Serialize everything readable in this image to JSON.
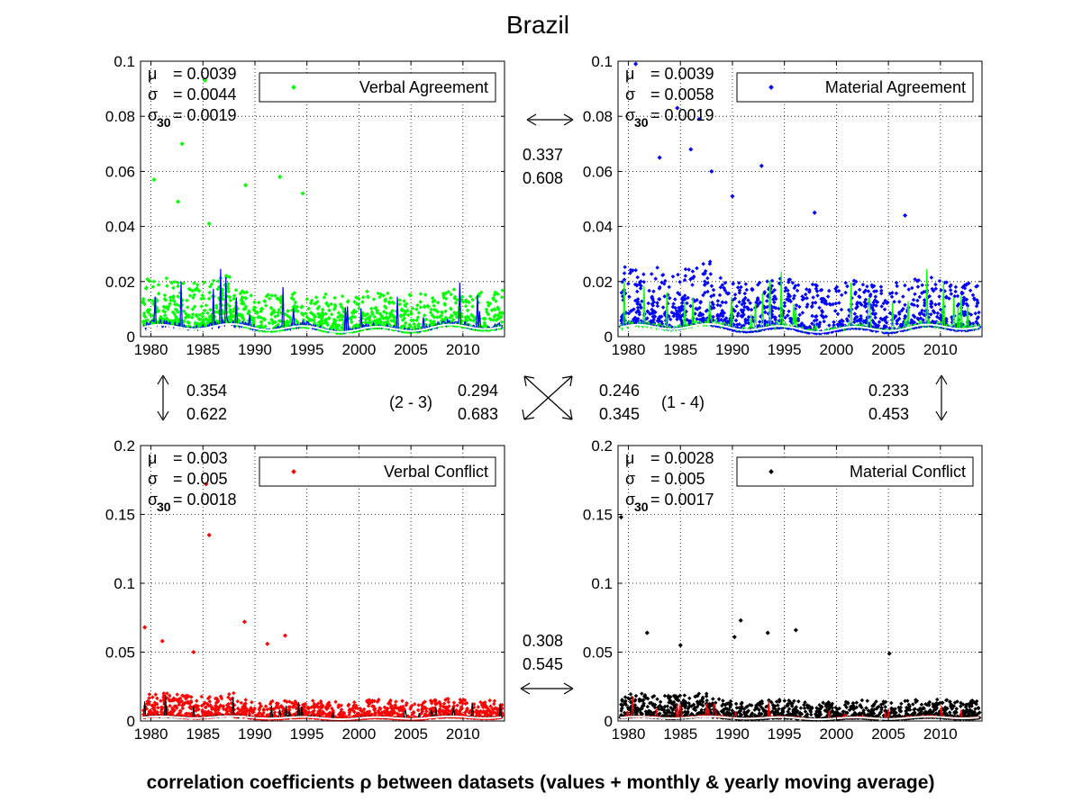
{
  "figure": {
    "title": "Brazil",
    "caption": "correlation coefficients ρ between datasets (values + monthly & yearly moving average)"
  },
  "chart_data": [
    {
      "type": "scatter",
      "panel": "top-left",
      "series": [
        {
          "name": "Verbal Agreement",
          "color": "#00ff00"
        }
      ],
      "xlim": [
        1979,
        2014
      ],
      "ylim": [
        0,
        0.1
      ],
      "xticks": [
        "1980",
        "1985",
        "1990",
        "1995",
        "2000",
        "2005",
        "2010"
      ],
      "yticks": [
        "0",
        "0.02",
        "0.04",
        "0.06",
        "0.08",
        "0.1"
      ],
      "stats": {
        "mu": "0.0039",
        "sigma": "0.0044",
        "sigma30": "0.0019"
      },
      "base": 0.0039,
      "noise": 0.0044,
      "sampleSpread": 0.35,
      "outliers": [
        [
          1980.3,
          0.057
        ],
        [
          1983.0,
          0.07
        ],
        [
          1985.2,
          0.093
        ],
        [
          1989.1,
          0.055
        ],
        [
          1992.4,
          0.058
        ],
        [
          1994.6,
          0.052
        ],
        [
          1982.6,
          0.049
        ],
        [
          1985.6,
          0.041
        ]
      ],
      "maColor": "#ffffff",
      "monthlyColor": "#0000ff",
      "grid": true,
      "legend_position": "top-right"
    },
    {
      "type": "scatter",
      "panel": "top-right",
      "series": [
        {
          "name": "Material Agreement",
          "color": "#0000ff"
        }
      ],
      "xlim": [
        1979,
        2014
      ],
      "ylim": [
        0,
        0.1
      ],
      "xticks": [
        "1980",
        "1985",
        "1990",
        "1995",
        "2000",
        "2005",
        "2010"
      ],
      "yticks": [
        "0",
        "0.02",
        "0.04",
        "0.06",
        "0.08",
        "0.1"
      ],
      "stats": {
        "mu": "0.0039",
        "sigma": "0.0058",
        "sigma30": "0.0019"
      },
      "base": 0.0039,
      "noise": 0.0058,
      "sampleSpread": 0.35,
      "outliers": [
        [
          1980.7,
          0.099
        ],
        [
          1984.7,
          0.083
        ],
        [
          1986.0,
          0.068
        ],
        [
          1983.0,
          0.065
        ],
        [
          1986.8,
          0.079
        ],
        [
          1992.8,
          0.062
        ],
        [
          1988.0,
          0.06
        ],
        [
          1997.9,
          0.045
        ],
        [
          2006.6,
          0.044
        ],
        [
          1990.0,
          0.051
        ]
      ],
      "maColor": "#ffffff",
      "monthlyColor": "#00ff00",
      "grid": true,
      "legend_position": "top-right"
    },
    {
      "type": "scatter",
      "panel": "bottom-left",
      "series": [
        {
          "name": "Verbal Conflict",
          "color": "#ff0000"
        }
      ],
      "xlim": [
        1979,
        2014
      ],
      "ylim": [
        0,
        0.2
      ],
      "xticks": [
        "1980",
        "1985",
        "1990",
        "1995",
        "2000",
        "2005",
        "2010"
      ],
      "yticks": [
        "0",
        "0.05",
        "0.1",
        "0.15",
        "0.2"
      ],
      "stats": {
        "mu": "0.003",
        "sigma": "0.005",
        "sigma30": "0.0018"
      },
      "base": 0.003,
      "noise": 0.005,
      "sampleSpread": 0.3,
      "outliers": [
        [
          1985.6,
          0.135
        ],
        [
          1985.3,
          0.172
        ],
        [
          1989.0,
          0.072
        ],
        [
          1979.4,
          0.068
        ],
        [
          1991.2,
          0.056
        ],
        [
          1992.9,
          0.062
        ],
        [
          1981.1,
          0.058
        ],
        [
          1984.1,
          0.05
        ]
      ],
      "maColor": "#ffffff",
      "monthlyColor": "#000000",
      "grid": true,
      "legend_position": "top-right"
    },
    {
      "type": "scatter",
      "panel": "bottom-right",
      "series": [
        {
          "name": "Material Conflict",
          "color": "#000000"
        }
      ],
      "xlim": [
        1979,
        2014
      ],
      "ylim": [
        0,
        0.2
      ],
      "xticks": [
        "1980",
        "1985",
        "1990",
        "1995",
        "2000",
        "2005",
        "2010"
      ],
      "yticks": [
        "0",
        "0.05",
        "0.1",
        "0.15",
        "0.2"
      ],
      "stats": {
        "mu": "0.0028",
        "sigma": "0.005",
        "sigma30": "0.0017"
      },
      "base": 0.0028,
      "noise": 0.005,
      "sampleSpread": 0.3,
      "outliers": [
        [
          1979.3,
          0.148
        ],
        [
          1981.8,
          0.064
        ],
        [
          1990.8,
          0.073
        ],
        [
          1993.4,
          0.064
        ],
        [
          1996.1,
          0.066
        ],
        [
          2005.1,
          0.049
        ],
        [
          1990.2,
          0.061
        ],
        [
          1985.0,
          0.055
        ]
      ],
      "maColor": "#ffffff",
      "monthlyColor": "#ff0000",
      "grid": true,
      "legend_position": "top-right"
    }
  ],
  "correlations": {
    "top": {
      "a": "0.337",
      "b": "0.608"
    },
    "bottom": {
      "a": "0.308",
      "b": "0.545"
    },
    "left": {
      "a": "0.354",
      "b": "0.622"
    },
    "right": {
      "a": "0.233",
      "b": "0.453"
    },
    "cross_2_3": {
      "label": "(2 - 3)",
      "a": "0.294",
      "b": "0.683"
    },
    "cross_1_4": {
      "label": "(1 - 4)",
      "a": "0.246",
      "b": "0.345"
    }
  },
  "stat_symbols": {
    "mu": "μ",
    "sigma": "σ",
    "sigma_sub": "30"
  }
}
